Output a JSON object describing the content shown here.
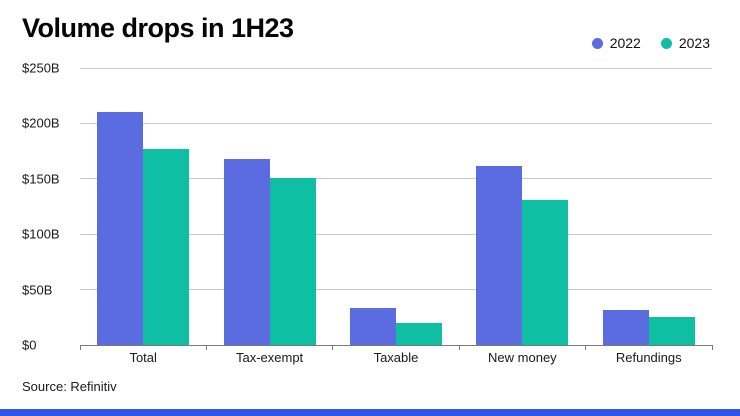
{
  "page": {
    "background": "#ffffff",
    "accent_bar_color": "#2e55e7",
    "source": "Source: Refinitiv"
  },
  "chart_data": {
    "type": "bar",
    "title": "Volume drops in 1H23",
    "categories": [
      "Total",
      "Tax-exempt",
      "Taxable",
      "New money",
      "Refundings"
    ],
    "series": [
      {
        "name": "2022",
        "color": "#5b6ce1",
        "values": [
          210,
          168,
          33,
          162,
          32
        ]
      },
      {
        "name": "2023",
        "color": "#0fbfa3",
        "values": [
          177,
          151,
          20,
          131,
          25
        ]
      }
    ],
    "ylim": [
      0,
      250
    ],
    "yticks": [
      {
        "value": 250,
        "label": "$250B"
      },
      {
        "value": 200,
        "label": "$200B"
      },
      {
        "value": 150,
        "label": "$150B"
      },
      {
        "value": 100,
        "label": "$100B"
      },
      {
        "value": 50,
        "label": "$50B"
      },
      {
        "value": 0,
        "label": "$0"
      }
    ],
    "grid": true,
    "legend_position": "top-right",
    "source": "Source: Refinitiv"
  }
}
